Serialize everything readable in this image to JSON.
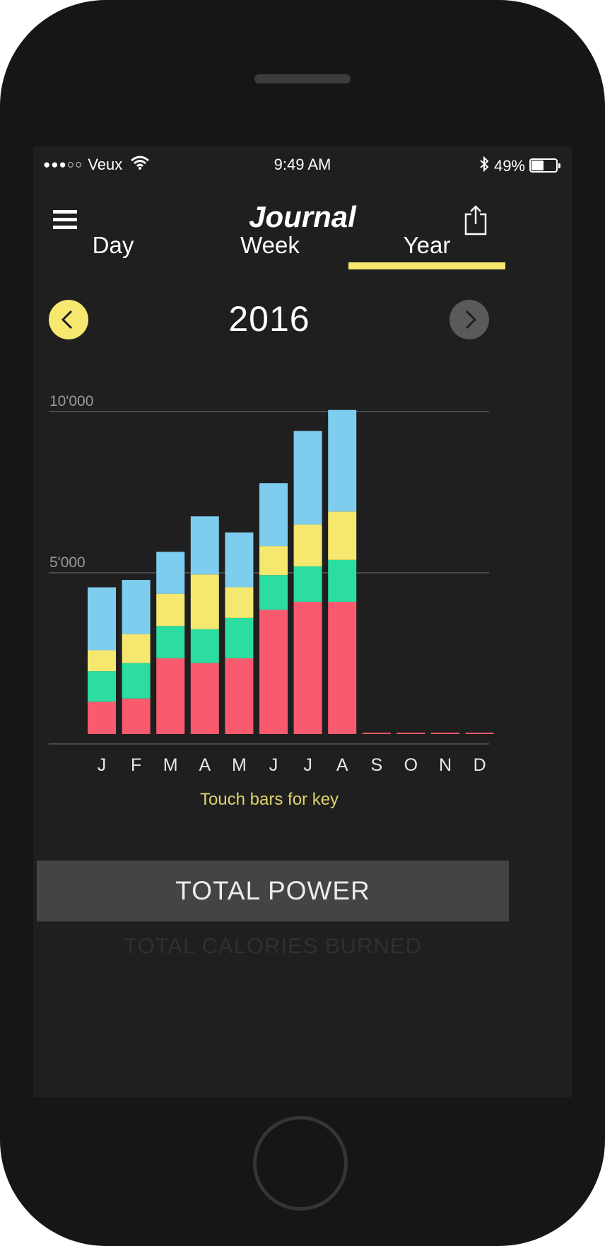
{
  "status_bar": {
    "signal": "●●●○○",
    "carrier": "Veux",
    "time": "9:49 AM",
    "battery": "49%",
    "battery_level": 0.49
  },
  "nav": {
    "title": "Journal"
  },
  "tabs": [
    {
      "label": "Day",
      "selected": false
    },
    {
      "label": "Week",
      "selected": false
    },
    {
      "label": "Year",
      "selected": true
    }
  ],
  "year_selector": {
    "year": "2016"
  },
  "chart_data": {
    "type": "bar",
    "stacked": true,
    "categories": [
      "J",
      "F",
      "M",
      "A",
      "M",
      "J",
      "J",
      "A",
      "S",
      "O",
      "N",
      "D"
    ],
    "yticks": [
      "5'000",
      "10'000"
    ],
    "ytick_values": [
      5000,
      10000
    ],
    "ylim": [
      0,
      10000
    ],
    "grid": true,
    "series": [
      {
        "color": "#fa5a6e",
        "values": [
          1000,
          1100,
          2350,
          2200,
          2350,
          3850,
          4100,
          4100,
          40,
          40,
          40,
          40
        ]
      },
      {
        "color": "#2bdda0",
        "values": [
          950,
          1100,
          1000,
          1050,
          1250,
          1080,
          1100,
          1300,
          0,
          0,
          0,
          0
        ]
      },
      {
        "color": "#f6e86e",
        "values": [
          650,
          900,
          1000,
          1700,
          950,
          900,
          1300,
          1500,
          0,
          0,
          0,
          0
        ]
      },
      {
        "color": "#7ecdef",
        "values": [
          1950,
          1680,
          1300,
          1800,
          1700,
          1950,
          2900,
          3150,
          0,
          0,
          0,
          0
        ]
      }
    ]
  },
  "chart_hint": "Touch bars for key",
  "metrics": {
    "active": "TOTAL POWER",
    "inactive": "TOTAL CALORIES BURNED"
  }
}
